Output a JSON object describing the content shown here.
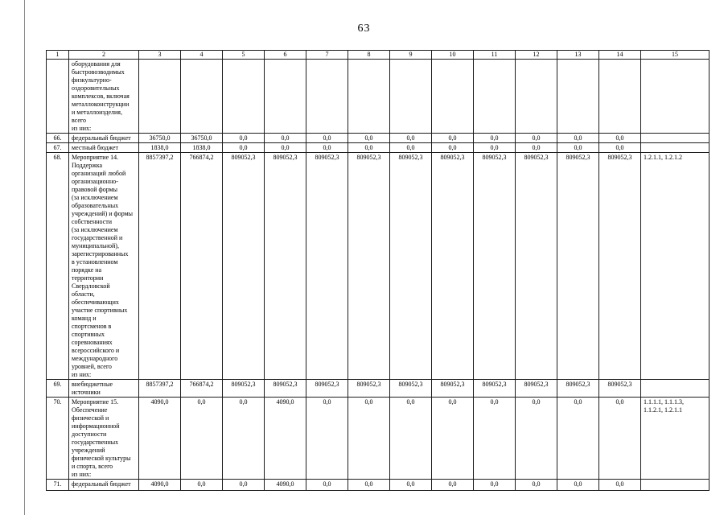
{
  "page": {
    "number": "63"
  },
  "table": {
    "column_headers": [
      "1",
      "2",
      "3",
      "4",
      "5",
      "6",
      "7",
      "8",
      "9",
      "10",
      "11",
      "12",
      "13",
      "14",
      "15"
    ],
    "rows": [
      {
        "num": "",
        "label": "оборудования для\nбыстровозводимых\nфизкультурно-\nоздоровительных\nкомплексов, включая\nметаллоконструкции\nи металлоизделия,\nвсего\nиз них:",
        "values": [
          "",
          "",
          "",
          "",
          "",
          "",
          "",
          "",
          "",
          "",
          "",
          ""
        ],
        "ref": ""
      },
      {
        "num": "66.",
        "label": "федеральный бюджет",
        "values": [
          "36750,0",
          "36750,0",
          "0,0",
          "0,0",
          "0,0",
          "0,0",
          "0,0",
          "0,0",
          "0,0",
          "0,0",
          "0,0",
          "0,0"
        ],
        "ref": ""
      },
      {
        "num": "67.",
        "label": "местный бюджет",
        "values": [
          "1838,0",
          "1838,0",
          "0,0",
          "0,0",
          "0,0",
          "0,0",
          "0,0",
          "0,0",
          "0,0",
          "0,0",
          "0,0",
          "0,0"
        ],
        "ref": ""
      },
      {
        "num": "68.",
        "label": "Мероприятие 14.\nПоддержка\nорганизаций любой\nорганизационно-\nправовой формы\n(за исключением\nобразовательных\nучреждений) и формы\nсобственности\n(за исключением\nгосударственной и\nмуниципальной),\nзарегистрированных\nв установленном\nпорядке на\nтерритории\nСвердловской\nобласти,\nобеспечивающих\nучастие спортивных\nкоманд и\nспортсменов в\nспортивных\nсоревнованиях\nвсероссийского и\nмеждународного\nуровней, всего\nиз них:",
        "values": [
          "8857397,2",
          "766874,2",
          "809052,3",
          "809052,3",
          "809052,3",
          "809052,3",
          "809052,3",
          "809052,3",
          "809052,3",
          "809052,3",
          "809052,3",
          "809052,3"
        ],
        "ref": "1.2.1.1, 1.2.1.2"
      },
      {
        "num": "69.",
        "label": "внебюджетные\nисточники",
        "values": [
          "8857397,2",
          "766874,2",
          "809052,3",
          "809052,3",
          "809052,3",
          "809052,3",
          "809052,3",
          "809052,3",
          "809052,3",
          "809052,3",
          "809052,3",
          "809052,3"
        ],
        "ref": ""
      },
      {
        "num": "70.",
        "label": "Мероприятие 15.\nОбеспечение\nфизической и\nинформационной\nдоступности\nгосударственных\nучреждений\nфизической культуры\nи спорта, всего\nиз них:",
        "values": [
          "4090,0",
          "0,0",
          "0,0",
          "4090,0",
          "0,0",
          "0,0",
          "0,0",
          "0,0",
          "0,0",
          "0,0",
          "0,0",
          "0,0"
        ],
        "ref": "1.1.1.1, 1.1.1.3,\n1.1.2.1, 1.2.1.1"
      },
      {
        "num": "71.",
        "label": "федеральный бюджет",
        "values": [
          "4090,0",
          "0,0",
          "0,0",
          "4090,0",
          "0,0",
          "0,0",
          "0,0",
          "0,0",
          "0,0",
          "0,0",
          "0,0",
          "0,0"
        ],
        "ref": ""
      }
    ]
  }
}
